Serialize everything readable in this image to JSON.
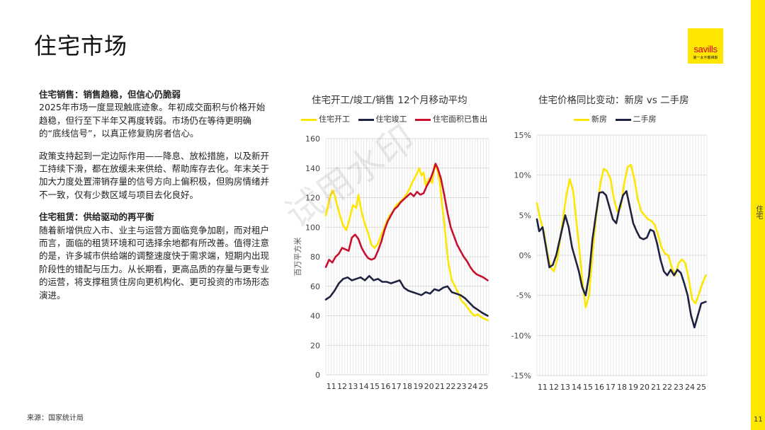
{
  "page": {
    "title": "住宅市场",
    "source": "来源：国家统计局",
    "page_number": "11",
    "side_label": "住宅",
    "watermark": "试用水印"
  },
  "logo": {
    "brand": "savills",
    "sub": "第一太平戴维斯",
    "color": "#ffe600"
  },
  "text": {
    "sections": [
      {
        "heading": "住宅销售：销售趋稳，但信心仍脆弱",
        "paragraphs": [
          "2025年市场一度显现触底迹象。年初成交面积与价格开始趋稳，但行至下半年又再度转弱。市场仍在等待更明确的“底线信号”，以真正修复购房者信心。",
          "政策支持起到一定边际作用——降息、放松措施，以及新开工持续下滑，都在放缓未来供给、帮助库存去化。年末关于加大力度处置滞销存量的信号方向上偏积极，但购房情绪并不一致，仅有少数区域与项目去化良好。"
        ]
      },
      {
        "heading": "住宅租赁：供给驱动的再平衡",
        "paragraphs": [
          "随着新增供应入市、业主与运营方面临竞争加剧，而对租户而言，面临的租赁环境和可选择余地都有所改善。值得注意的是，许多城市供给端的调整速度快于需求端，短期内出现阶段性的错配与压力。从长期看，更高品质的存量与更专业的运营，将支撑租赁住房向更机构化、更可投资的市场形态演进。"
        ]
      }
    ]
  },
  "chart_data": [
    {
      "type": "line",
      "title": "住宅开工/竣工/销售 12个月移动平均",
      "ylabel": "百万平方米",
      "xlabel": "",
      "ylim": [
        0,
        160
      ],
      "yticks": [
        0,
        20,
        40,
        60,
        80,
        100,
        120,
        140,
        160
      ],
      "xlim": [
        2011,
        2026
      ],
      "xticks": [
        "11",
        "12",
        "13",
        "14",
        "15",
        "16",
        "17",
        "18",
        "19",
        "20",
        "21",
        "22",
        "23",
        "24",
        "25"
      ],
      "grid": true,
      "legend": "top",
      "series": [
        {
          "name": "住宅开工",
          "color": "#ffe600",
          "x": [
            2011.0,
            2011.3,
            2011.6,
            2011.8,
            2012.0,
            2012.3,
            2012.6,
            2012.9,
            2013.2,
            2013.5,
            2013.8,
            2014.0,
            2014.3,
            2014.6,
            2014.9,
            2015.2,
            2015.5,
            2015.8,
            2016.0,
            2016.3,
            2016.6,
            2016.9,
            2017.2,
            2017.5,
            2017.8,
            2018.1,
            2018.4,
            2018.7,
            2019.0,
            2019.3,
            2019.6,
            2019.8,
            2020.0,
            2020.2,
            2020.5,
            2020.8,
            2021.0,
            2021.3,
            2021.5,
            2021.7,
            2021.9,
            2022.1,
            2022.3,
            2022.6,
            2022.9,
            2023.2,
            2023.5,
            2023.8,
            2024.1,
            2024.4,
            2024.7,
            2025.0,
            2025.3,
            2025.6,
            2025.9
          ],
          "y": [
            108,
            118,
            125,
            122,
            116,
            108,
            101,
            98,
            106,
            115,
            113,
            122,
            110,
            102,
            96,
            88,
            86,
            89,
            93,
            98,
            104,
            108,
            111,
            115,
            117,
            119,
            122,
            126,
            131,
            135,
            140,
            135,
            137,
            128,
            133,
            130,
            142,
            138,
            130,
            115,
            103,
            88,
            75,
            64,
            60,
            55,
            50,
            48,
            45,
            42,
            40,
            41,
            39,
            38,
            37
          ]
        },
        {
          "name": "住宅竣工",
          "color": "#1f2340",
          "x": [
            2011.0,
            2011.4,
            2011.8,
            2012.2,
            2012.6,
            2013.0,
            2013.4,
            2013.8,
            2014.2,
            2014.6,
            2015.0,
            2015.4,
            2015.8,
            2016.2,
            2016.6,
            2017.0,
            2017.4,
            2017.8,
            2018.2,
            2018.6,
            2019.0,
            2019.4,
            2019.8,
            2020.2,
            2020.6,
            2021.0,
            2021.4,
            2021.8,
            2022.2,
            2022.6,
            2023.0,
            2023.4,
            2023.8,
            2024.2,
            2024.6,
            2025.0,
            2025.4,
            2025.9
          ],
          "y": [
            51,
            53,
            57,
            62,
            65,
            66,
            64,
            65,
            66,
            64,
            67,
            64,
            65,
            63,
            63,
            62,
            63,
            64,
            59,
            57,
            56,
            55,
            54,
            56,
            55,
            58,
            57,
            59,
            60,
            56,
            55,
            54,
            52,
            49,
            46,
            44,
            42,
            40
          ]
        },
        {
          "name": "住宅面积已售出",
          "color": "#c8102e",
          "x": [
            2011.0,
            2011.3,
            2011.6,
            2011.9,
            2012.2,
            2012.5,
            2012.8,
            2013.1,
            2013.4,
            2013.7,
            2014.0,
            2014.3,
            2014.6,
            2014.9,
            2015.2,
            2015.5,
            2015.8,
            2016.1,
            2016.4,
            2016.7,
            2017.0,
            2017.3,
            2017.6,
            2017.9,
            2018.2,
            2018.5,
            2018.8,
            2019.1,
            2019.4,
            2019.7,
            2020.0,
            2020.3,
            2020.6,
            2020.9,
            2021.1,
            2021.3,
            2021.6,
            2021.9,
            2022.2,
            2022.5,
            2022.8,
            2023.1,
            2023.4,
            2023.7,
            2024.0,
            2024.3,
            2024.6,
            2024.9,
            2025.2,
            2025.5,
            2025.9
          ],
          "y": [
            73,
            78,
            76,
            80,
            82,
            86,
            85,
            84,
            93,
            95,
            92,
            86,
            82,
            79,
            78,
            79,
            84,
            90,
            98,
            104,
            108,
            112,
            114,
            117,
            119,
            121,
            123,
            121,
            124,
            122,
            123,
            128,
            132,
            138,
            143,
            140,
            133,
            122,
            110,
            100,
            94,
            88,
            84,
            80,
            77,
            73,
            70,
            68,
            67,
            66,
            64
          ]
        }
      ]
    },
    {
      "type": "line",
      "title": "住宅价格同比变动：新房 vs 二手房",
      "xlabel": "",
      "ylabel": "",
      "ylim": [
        -15,
        15
      ],
      "yticks": [
        -15,
        -10,
        -5,
        0,
        5,
        10,
        15
      ],
      "ytick_labels": [
        "-15%",
        "-10%",
        "-5%",
        "0%",
        "5%",
        "10%",
        "15%"
      ],
      "xlim": [
        2011,
        2026
      ],
      "xticks": [
        "11",
        "12",
        "13",
        "14",
        "15",
        "16",
        "17",
        "18",
        "19",
        "20",
        "21",
        "22",
        "23",
        "24",
        "25"
      ],
      "grid": true,
      "legend": "top",
      "series": [
        {
          "name": "新房",
          "color": "#ffe600",
          "x": [
            2011.0,
            2011.3,
            2011.6,
            2011.9,
            2012.2,
            2012.5,
            2012.8,
            2013.2,
            2013.6,
            2013.9,
            2014.2,
            2014.5,
            2014.8,
            2015.0,
            2015.3,
            2015.6,
            2015.9,
            2016.2,
            2016.6,
            2016.9,
            2017.2,
            2017.5,
            2017.8,
            2018.1,
            2018.4,
            2018.7,
            2019.0,
            2019.3,
            2019.6,
            2019.9,
            2020.2,
            2020.5,
            2020.8,
            2021.1,
            2021.4,
            2021.7,
            2022.0,
            2022.3,
            2022.6,
            2022.9,
            2023.2,
            2023.5,
            2023.8,
            2024.1,
            2024.4,
            2024.7,
            2025.0,
            2025.3,
            2025.6,
            2025.9
          ],
          "y": [
            6.5,
            4.5,
            3,
            0.5,
            -1.5,
            -2,
            -0.5,
            3.5,
            7.5,
            9.5,
            8,
            4,
            0,
            -3,
            -6.5,
            -5,
            0,
            4.5,
            9,
            10.8,
            10.5,
            9.5,
            7,
            5.5,
            6,
            9,
            11,
            11.3,
            9.5,
            7,
            5.5,
            5,
            4.5,
            4.3,
            3.8,
            2.5,
            1,
            0.2,
            0,
            -1.5,
            -2.5,
            -1,
            -0.5,
            -1,
            -3,
            -5.5,
            -6,
            -4.8,
            -3.5,
            -2.5
          ]
        },
        {
          "name": "二手房",
          "color": "#1f2340",
          "x": [
            2011.0,
            2011.2,
            2011.5,
            2011.8,
            2012.1,
            2012.4,
            2012.7,
            2013.1,
            2013.5,
            2013.8,
            2014.1,
            2014.4,
            2014.7,
            2015.0,
            2015.3,
            2015.6,
            2015.9,
            2016.2,
            2016.5,
            2016.8,
            2017.1,
            2017.4,
            2017.7,
            2018.0,
            2018.3,
            2018.6,
            2018.9,
            2019.2,
            2019.5,
            2019.8,
            2020.1,
            2020.4,
            2020.7,
            2021.0,
            2021.3,
            2021.6,
            2021.9,
            2022.2,
            2022.5,
            2022.8,
            2023.1,
            2023.4,
            2023.7,
            2024.0,
            2024.3,
            2024.6,
            2024.9,
            2025.2,
            2025.5,
            2025.9
          ],
          "y": [
            4.5,
            3,
            3.5,
            1,
            -1.5,
            -1.2,
            0,
            2.5,
            5,
            3.5,
            1,
            -0.5,
            -2,
            -4,
            -5,
            -2.5,
            2,
            5,
            7.8,
            7.9,
            7.5,
            6,
            4.5,
            4,
            6,
            7.5,
            8,
            6,
            4,
            3,
            2.2,
            2,
            2.2,
            3.2,
            3,
            1.5,
            -0.5,
            -2,
            -2.5,
            -1.8,
            -2.5,
            -1.8,
            -2.2,
            -3.5,
            -5,
            -7.5,
            -9,
            -7.5,
            -6,
            -5.8
          ]
        }
      ]
    }
  ]
}
